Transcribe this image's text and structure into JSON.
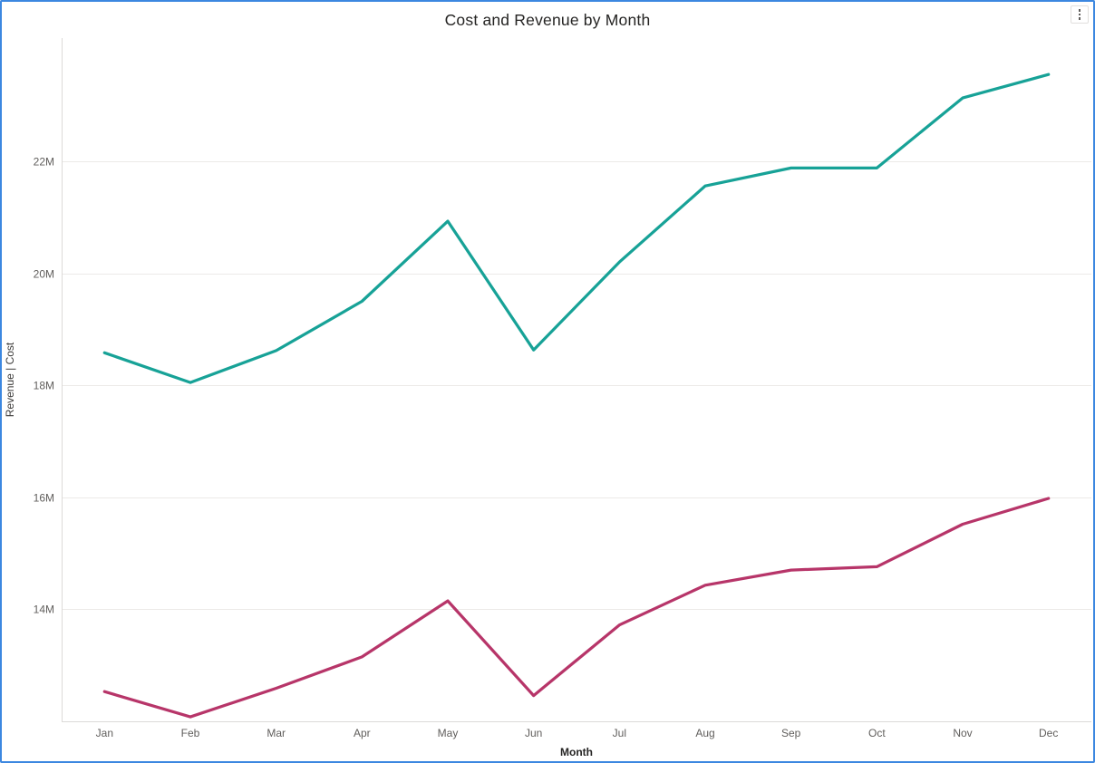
{
  "header": {
    "title": "Cost and Revenue by Month",
    "more_options_icon": "vertical-ellipsis"
  },
  "colors": {
    "revenue_line": "#17A297",
    "cost_line": "#B73569",
    "gridline": "#ECEAE8",
    "axis_line": "#DCDAD8",
    "tick_text": "#605E5C",
    "title_text": "#252423",
    "focus_border": "#3C87E0"
  },
  "chart_data": {
    "type": "line",
    "title": "Cost and Revenue by Month",
    "xlabel": "Month",
    "ylabel": "Revenue  |  Cost",
    "categories": [
      "Jan",
      "Feb",
      "Mar",
      "Apr",
      "May",
      "Jun",
      "Jul",
      "Aug",
      "Sep",
      "Oct",
      "Nov",
      "Dec"
    ],
    "series": [
      {
        "name": "Revenue",
        "color_key": "revenue_line",
        "values": [
          18.58,
          18.05,
          18.62,
          19.5,
          20.93,
          18.63,
          20.2,
          21.56,
          21.88,
          21.88,
          23.13,
          23.55
        ]
      },
      {
        "name": "Cost",
        "color_key": "cost_line",
        "values": [
          12.53,
          12.08,
          12.59,
          13.15,
          14.15,
          12.46,
          13.72,
          14.43,
          14.7,
          14.76,
          15.52,
          15.98
        ]
      }
    ],
    "unit": "M",
    "y_ticks": [
      {
        "value": 14,
        "label": "14M"
      },
      {
        "value": 16,
        "label": "16M"
      },
      {
        "value": 18,
        "label": "18M"
      },
      {
        "value": 20,
        "label": "20M"
      },
      {
        "value": 22,
        "label": "22M"
      }
    ],
    "ylim": [
      12,
      24.2
    ],
    "grid": "horizontal",
    "legend": "none"
  }
}
